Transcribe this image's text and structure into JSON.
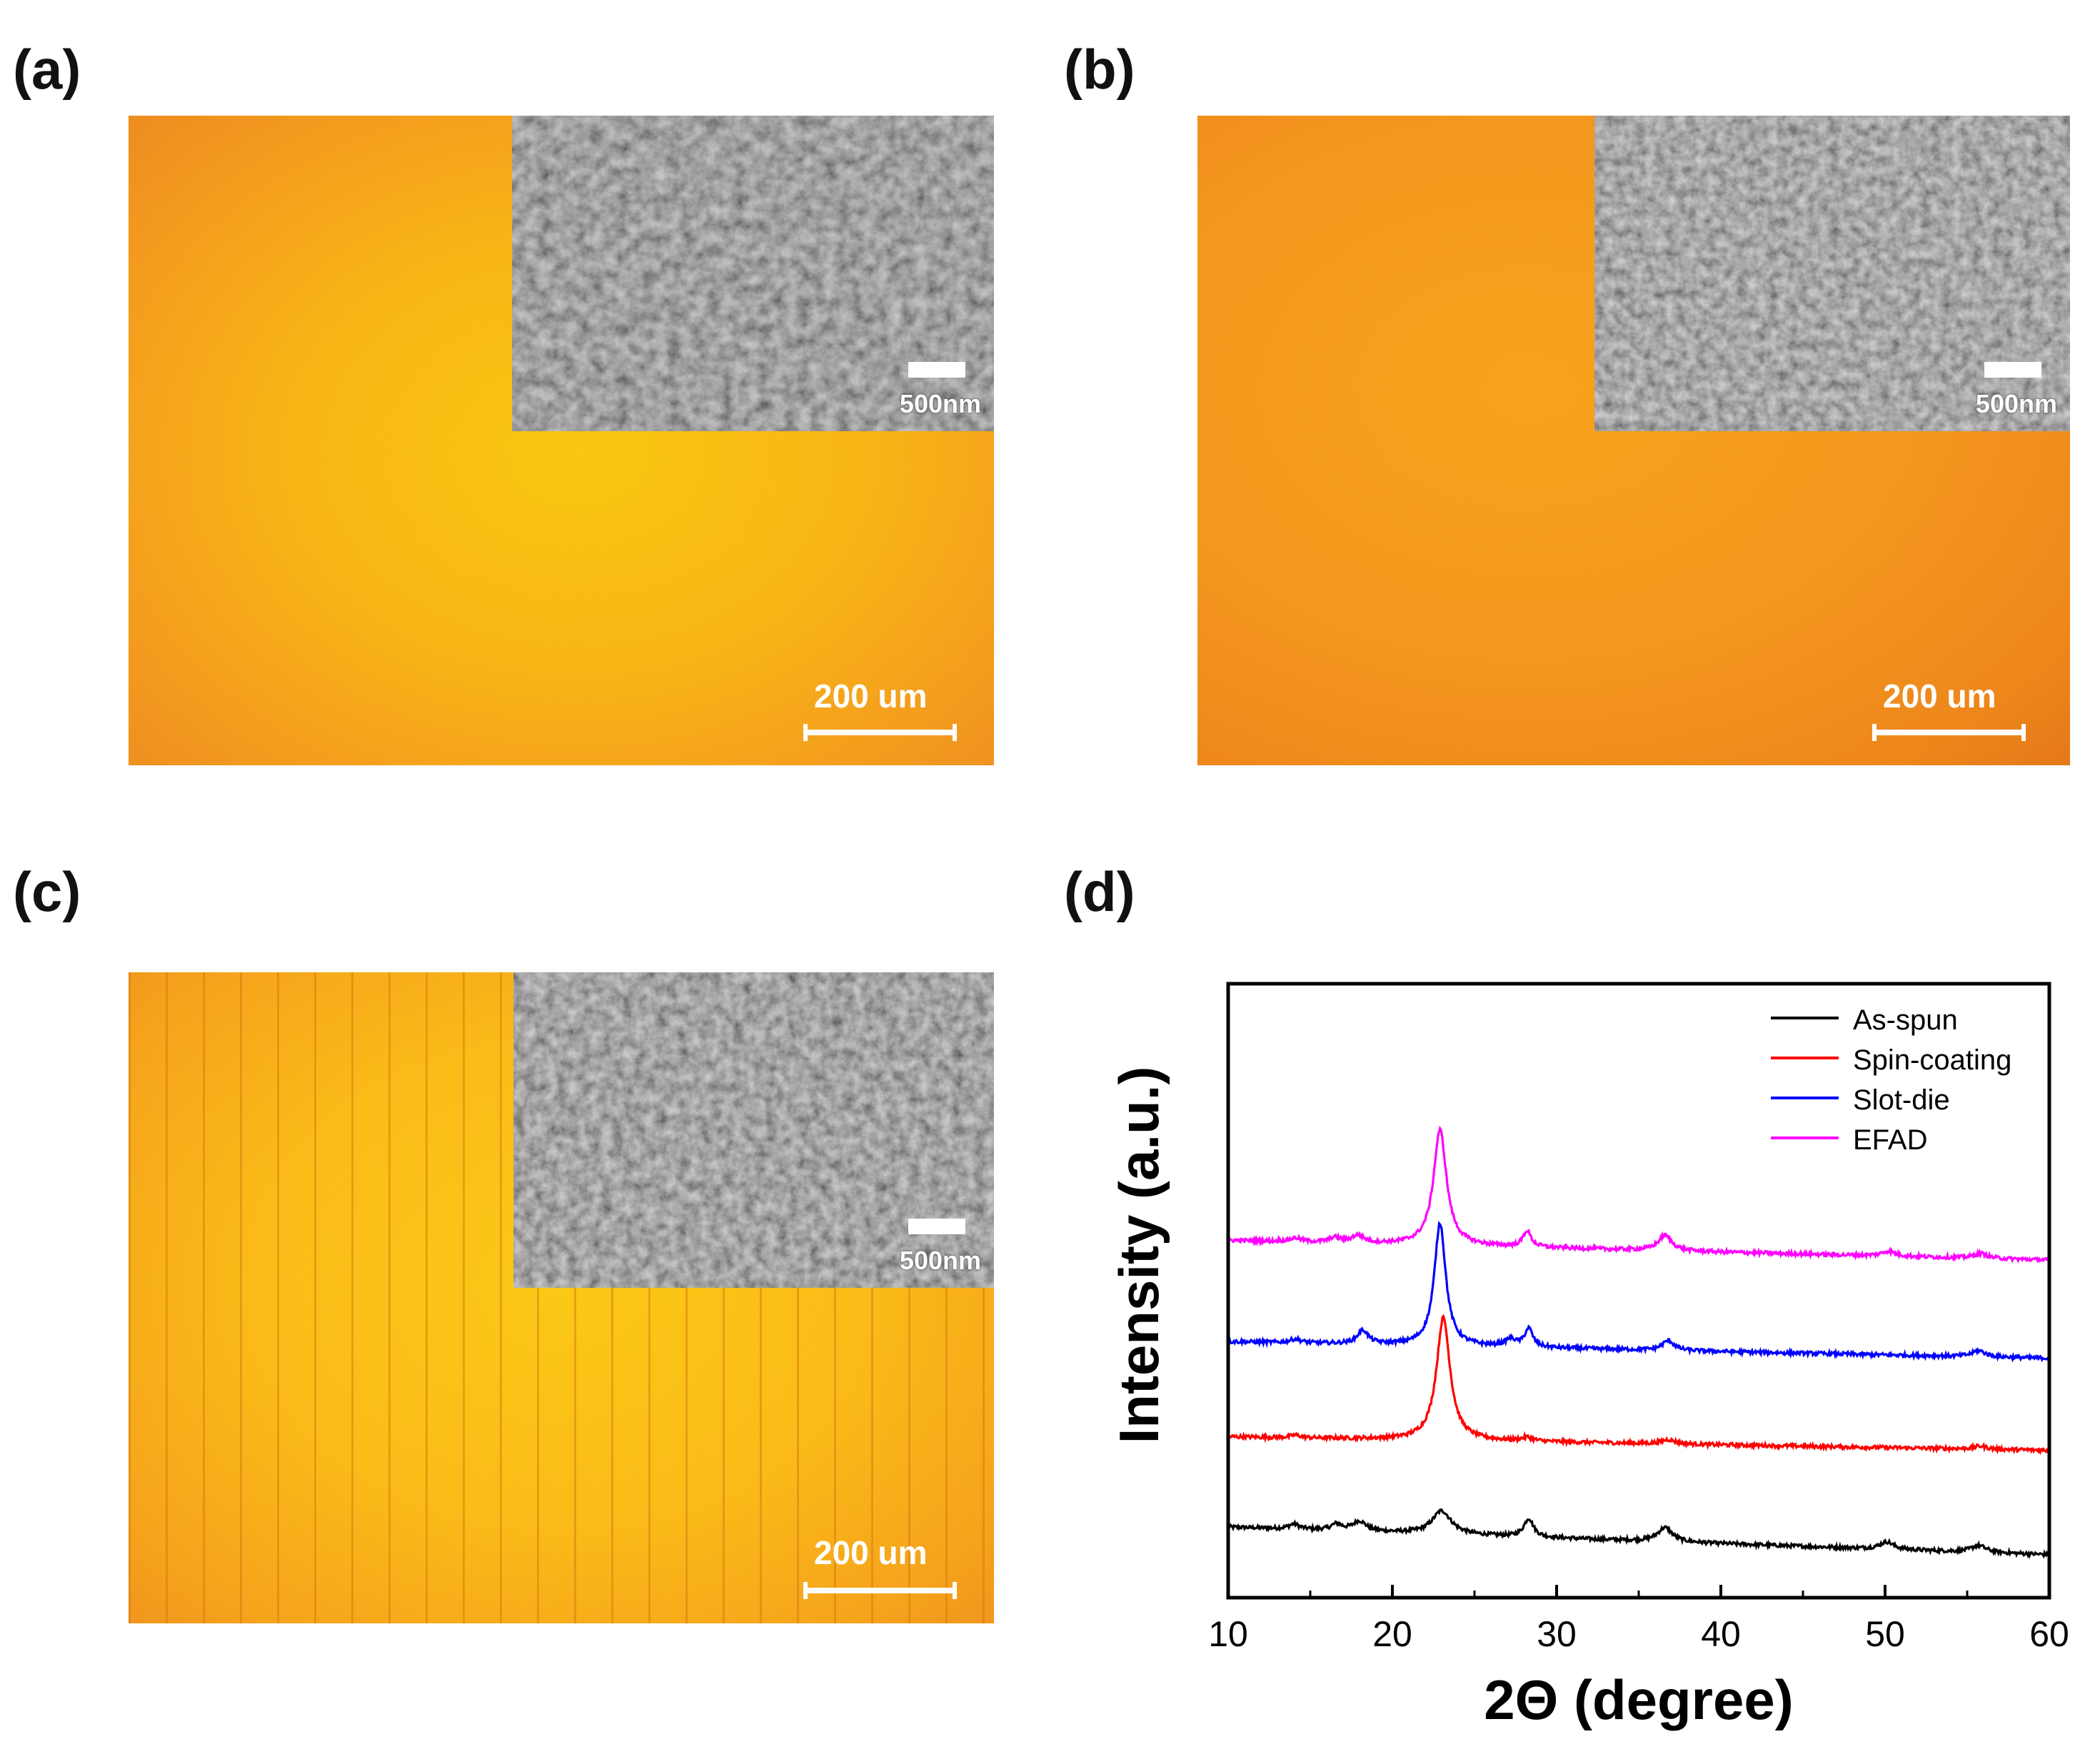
{
  "panels": [
    {
      "label": "(a)",
      "sem_scale": "500nm",
      "optical_scale": "200 um"
    },
    {
      "label": "(b)",
      "sem_scale": "500nm",
      "optical_scale": "200 um"
    },
    {
      "label": "(c)",
      "sem_scale": "500nm",
      "optical_scale": "200 um"
    },
    {
      "label": "(d)"
    }
  ],
  "colors": {
    "as_spun": "#000000",
    "spin_coating": "#ff0000",
    "slot_die": "#0000ff",
    "efad": "#ff00ff"
  },
  "chart_data": {
    "type": "line",
    "title": "",
    "xlabel": "2Θ (degree)",
    "ylabel": "Intensity (a.u.)",
    "xlim": [
      10,
      60
    ],
    "x_ticks": [
      10,
      20,
      30,
      40,
      50,
      60
    ],
    "y_ticks": [],
    "legend_position": "top-right",
    "series": [
      {
        "name": "As-spun",
        "color": "#000000",
        "baseline": 0.07,
        "tilt": 0.045,
        "peaks": [
          [
            14.0,
            0.008,
            0.4
          ],
          [
            16.6,
            0.01,
            0.4
          ],
          [
            18.0,
            0.016,
            0.5
          ],
          [
            23.0,
            0.038,
            0.7
          ],
          [
            28.3,
            0.03,
            0.35
          ],
          [
            36.6,
            0.023,
            0.55
          ],
          [
            50.1,
            0.012,
            0.5
          ],
          [
            55.7,
            0.011,
            0.55
          ]
        ]
      },
      {
        "name": "Spin-coating",
        "color": "#ff0000",
        "baseline": 0.24,
        "tilt": 0.022,
        "peaks": [
          [
            14.1,
            0.004,
            0.4
          ],
          [
            23.1,
            0.2,
            0.5
          ],
          [
            28.2,
            0.006,
            0.4
          ],
          [
            36.8,
            0.007,
            0.5
          ],
          [
            55.8,
            0.005,
            0.5
          ]
        ]
      },
      {
        "name": "Slot-die",
        "color": "#0000ff",
        "baseline": 0.39,
        "tilt": 0.027,
        "peaks": [
          [
            14.1,
            0.006,
            0.4
          ],
          [
            18.2,
            0.022,
            0.4
          ],
          [
            22.9,
            0.2,
            0.42
          ],
          [
            27.2,
            0.012,
            0.4
          ],
          [
            28.3,
            0.03,
            0.3
          ],
          [
            36.8,
            0.016,
            0.45
          ],
          [
            55.7,
            0.01,
            0.5
          ]
        ]
      },
      {
        "name": "EFAD",
        "color": "#ff00ff",
        "baseline": 0.55,
        "tilt": 0.032,
        "peaks": [
          [
            14.1,
            0.006,
            0.4
          ],
          [
            16.5,
            0.008,
            0.4
          ],
          [
            17.9,
            0.012,
            0.45
          ],
          [
            22.9,
            0.188,
            0.48
          ],
          [
            28.2,
            0.026,
            0.3
          ],
          [
            36.6,
            0.025,
            0.5
          ],
          [
            50.2,
            0.008,
            0.5
          ],
          [
            55.8,
            0.008,
            0.5
          ]
        ]
      }
    ]
  }
}
